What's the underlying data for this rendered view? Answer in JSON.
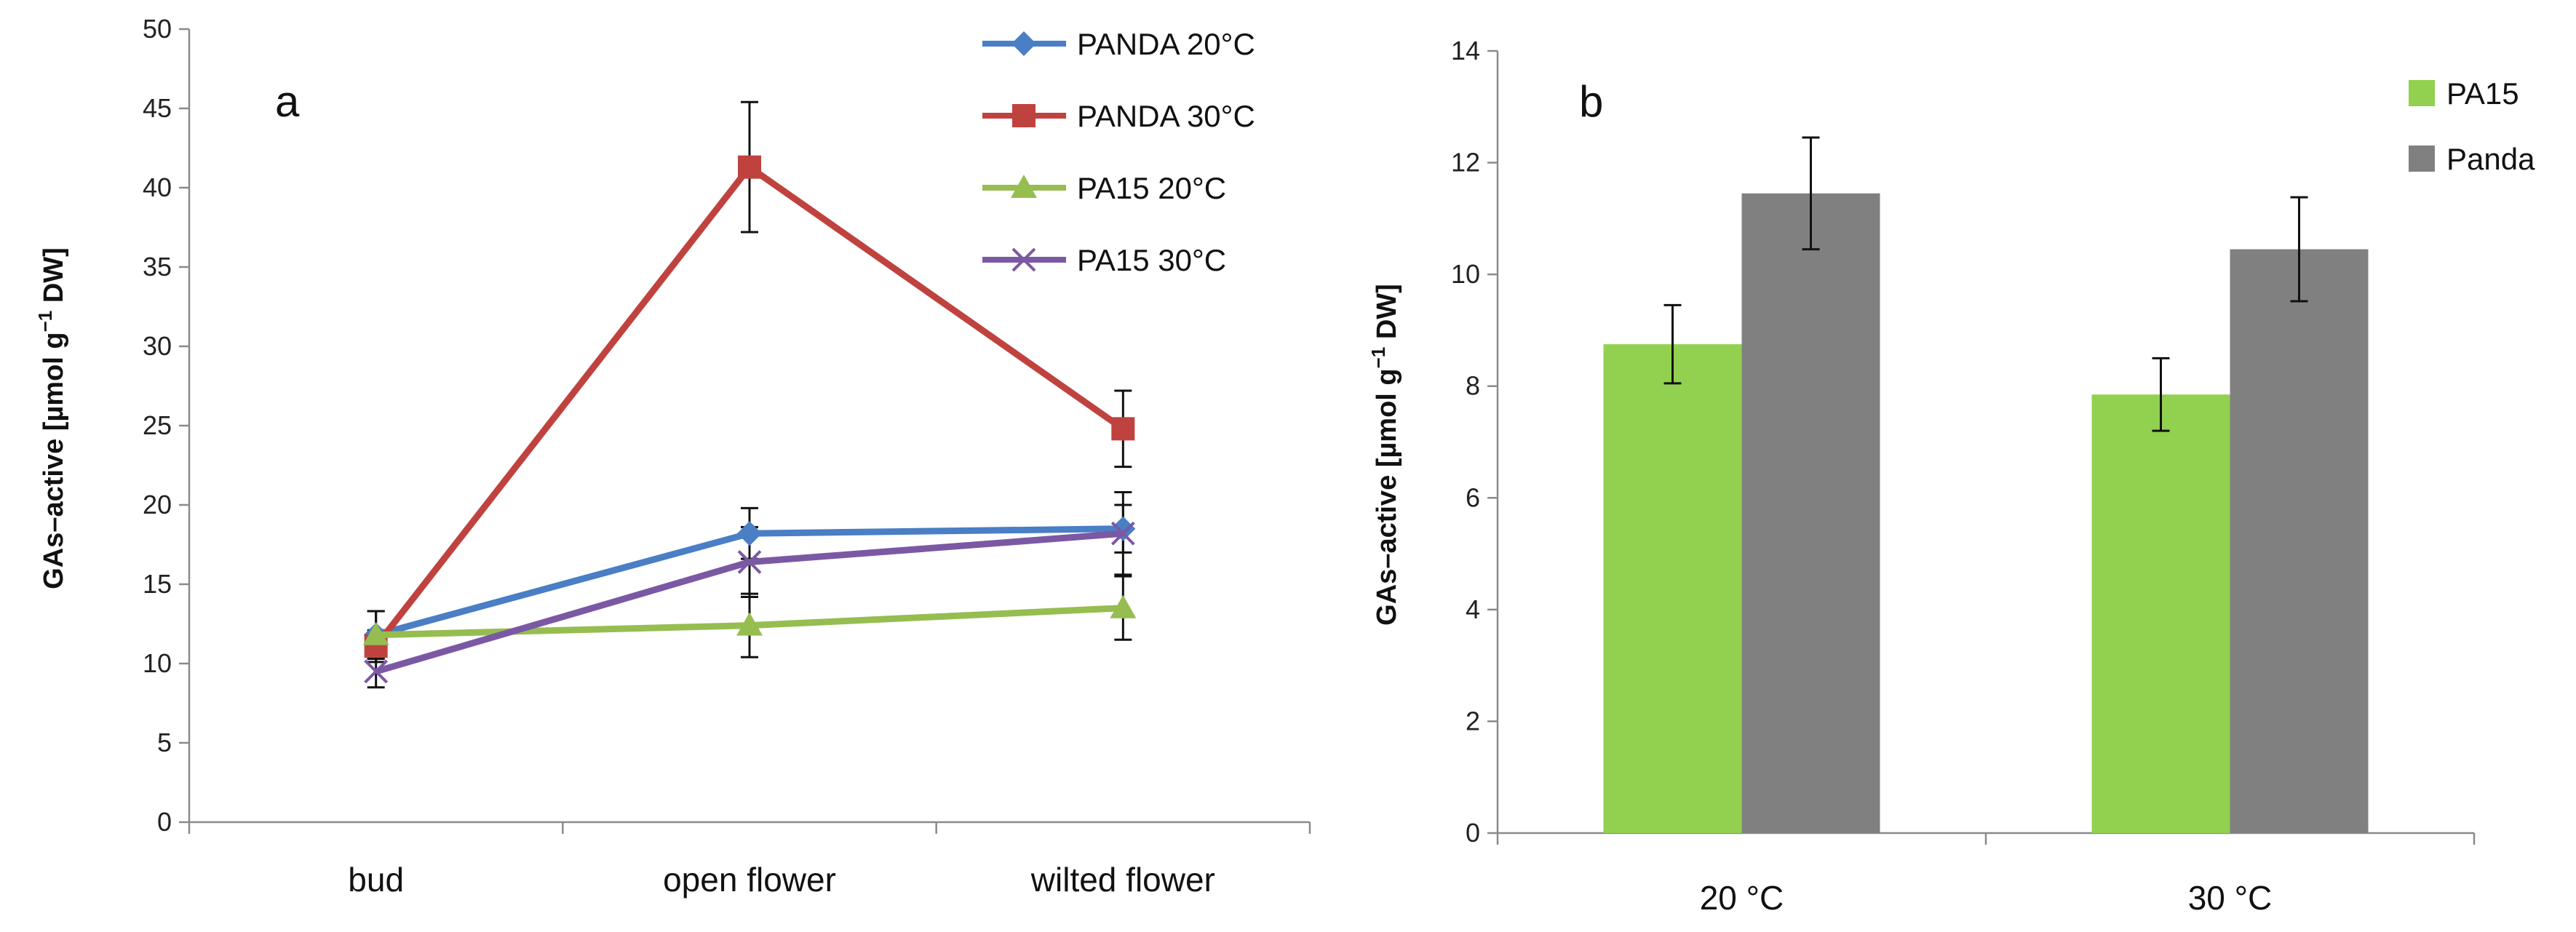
{
  "colors": {
    "panda20": "#4a7ec5",
    "panda30": "#c0423f",
    "pa15_20": "#96bd50",
    "pa15_30": "#7b58a4",
    "bar_pa15": "#92d050",
    "bar_panda": "#808080"
  },
  "chart_data": [
    {
      "type": "line",
      "panel_label": "a",
      "ylabel_main": "GAs–active [µmol g",
      "ylabel_sup": "−1",
      "ylabel_tail": " DW]",
      "xlabel": "",
      "categories": [
        "bud",
        "open flower",
        "wilted flower"
      ],
      "ylim": [
        0,
        50
      ],
      "yticks": [
        "0",
        "5",
        "10",
        "15",
        "20",
        "25",
        "30",
        "35",
        "40",
        "45",
        "50"
      ],
      "legend_position": "top-right",
      "series": [
        {
          "name": "PANDA 20°C",
          "marker": "diamond",
          "color": "#4a7ec5",
          "values": [
            11.8,
            18.2,
            18.5
          ],
          "errors": [
            1.5,
            1.6,
            1.5
          ]
        },
        {
          "name": "PANDA 30°C",
          "marker": "square",
          "color": "#c0423f",
          "values": [
            11.1,
            41.3,
            24.8
          ],
          "errors": [
            1.0,
            4.1,
            2.4
          ]
        },
        {
          "name": "PA15 20°C",
          "marker": "triangle",
          "color": "#96bd50",
          "values": [
            11.8,
            12.4,
            13.5
          ],
          "errors": [
            1.5,
            2.0,
            2.0
          ]
        },
        {
          "name": "PA15 30°C",
          "marker": "x",
          "color": "#7b58a4",
          "values": [
            9.5,
            16.4,
            18.2
          ],
          "errors": [
            1.0,
            2.2,
            2.6
          ]
        }
      ]
    },
    {
      "type": "bar",
      "panel_label": "b",
      "ylabel_main": "GAs–active [µmol g",
      "ylabel_sup": "−1",
      "ylabel_tail": " DW]",
      "xlabel": "",
      "categories": [
        "20 °C",
        "30 °C"
      ],
      "ylim": [
        0,
        14
      ],
      "yticks": [
        "0",
        "2",
        "4",
        "6",
        "8",
        "10",
        "12",
        "14"
      ],
      "legend_position": "top-right",
      "series": [
        {
          "name": "PA15",
          "color": "#92d050",
          "values": [
            8.75,
            7.85
          ],
          "errors": [
            0.7,
            0.65
          ]
        },
        {
          "name": "Panda",
          "color": "#808080",
          "values": [
            11.45,
            10.45
          ],
          "errors": [
            1.0,
            0.93
          ]
        }
      ]
    }
  ]
}
